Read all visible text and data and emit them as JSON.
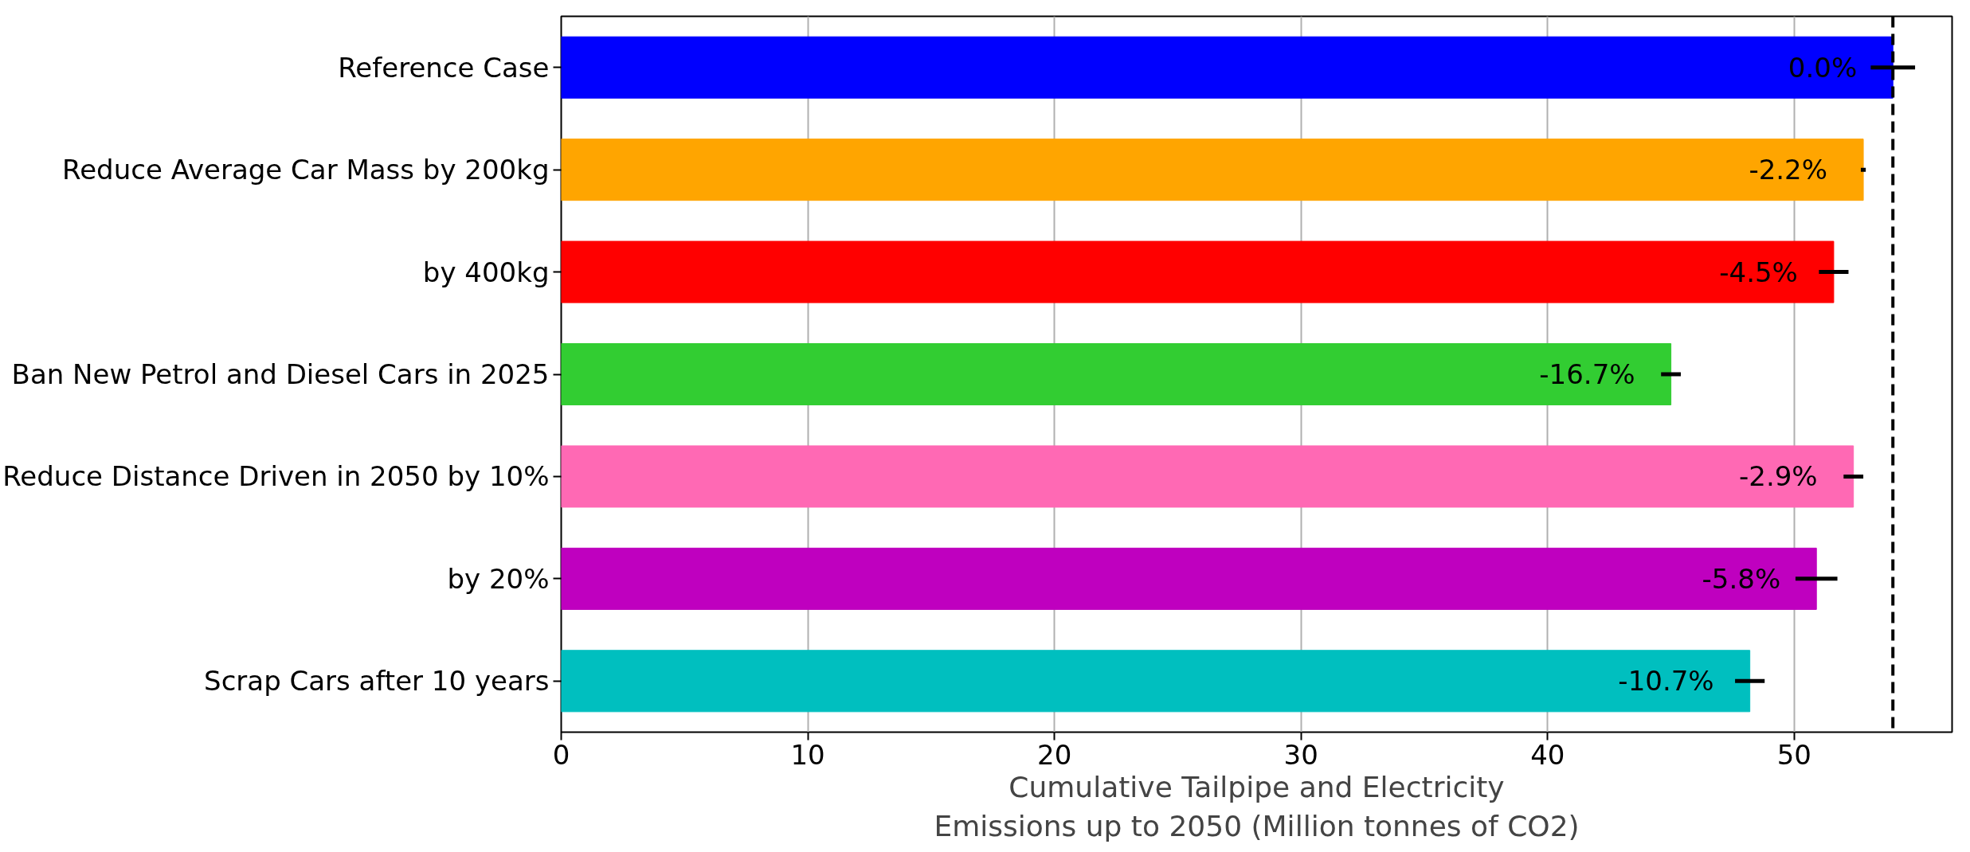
{
  "chart_data": {
    "type": "bar",
    "orientation": "horizontal",
    "xlabel": "Cumulative Tailpipe and Electricity\nEmissions up to 2050 (Million tonnes of CO2)",
    "categories": [
      "Reference Case",
      "Reduce Average Car Mass by 200kg",
      "by 400kg",
      "Ban New Petrol and Diesel Cars in 2025",
      "Reduce Distance Driven in 2050 by 10%",
      "by 20%",
      "Scrap Cars after 10 years"
    ],
    "values": [
      54.0,
      52.8,
      51.6,
      45.0,
      52.4,
      50.9,
      48.2
    ],
    "colors": [
      "#0000ff",
      "#ffa500",
      "#ff0000",
      "#32cd32",
      "#ff69b4",
      "#bf00bf",
      "#00bfbf"
    ],
    "errors": [
      0.9,
      0.1,
      0.6,
      0.4,
      0.4,
      0.85,
      0.6
    ],
    "annotations": [
      {
        "text": "0.0%",
        "x": 54.0,
        "y": "Reference Case"
      },
      {
        "text": "-2.2%",
        "x": 52.8,
        "y": "Reduce Average Car Mass by 200kg"
      },
      {
        "text": "-4.5%",
        "x": 51.6,
        "y": "by 400kg"
      },
      {
        "text": "-16.7%",
        "x": 45.0,
        "y": "Ban New Petrol and Diesel Cars in 2025"
      },
      {
        "text": "-2.9%",
        "x": 52.4,
        "y": "Reduce Distance Driven in 2050 by 10%"
      },
      {
        "text": "-5.8%",
        "x": 50.9,
        "y": "by 20%"
      },
      {
        "text": "-10.7%",
        "x": 48.2,
        "y": "Scrap Cars after 10 years"
      }
    ],
    "xlim": [
      0,
      56.4
    ],
    "xticks": [
      0,
      10,
      20,
      30,
      40,
      50
    ],
    "grid": "x",
    "ref_lines": [
      {
        "axis": "x",
        "value": 54.0,
        "label": null,
        "color": "#000000",
        "line_style": "dashed"
      }
    ]
  }
}
